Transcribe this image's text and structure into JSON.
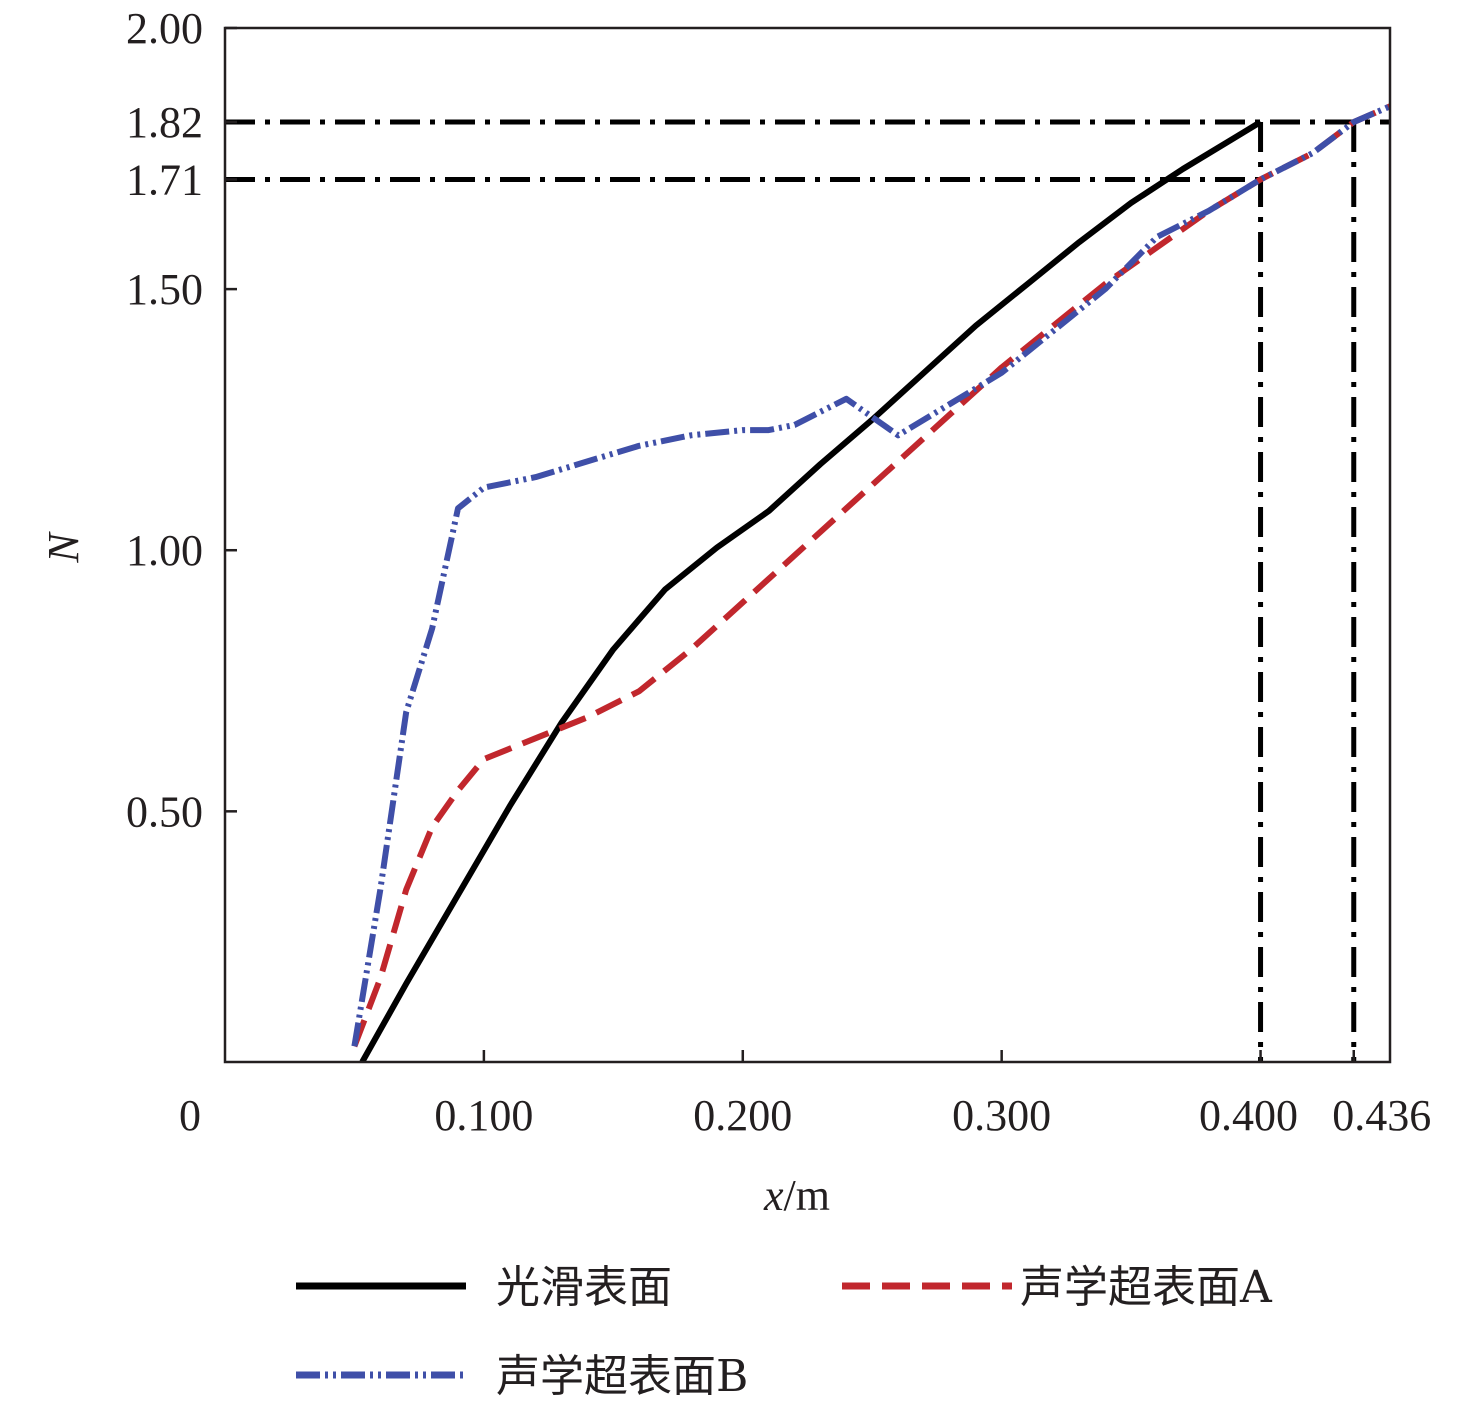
{
  "chart_data": {
    "type": "line",
    "xlabel_italic": "x",
    "xlabel_unit": "/m",
    "ylabel": "N",
    "xlim": [
      0,
      0.45
    ],
    "ylim": [
      0.02,
      2.0
    ],
    "x_ticks": [
      {
        "value": 0,
        "label": "0"
      },
      {
        "value": 0.1,
        "label": "0.100"
      },
      {
        "value": 0.2,
        "label": "0.200"
      },
      {
        "value": 0.3,
        "label": "0.300"
      },
      {
        "value": 0.4,
        "label": "0.400"
      },
      {
        "value": 0.436,
        "label": "0.436"
      }
    ],
    "y_ticks": [
      {
        "value": 0.5,
        "label": "0.50"
      },
      {
        "value": 1.0,
        "label": "1.00"
      },
      {
        "value": 1.5,
        "label": "1.50"
      },
      {
        "value": 1.71,
        "label": "1.71"
      },
      {
        "value": 1.82,
        "label": "1.82"
      },
      {
        "value": 2.0,
        "label": "2.00"
      }
    ],
    "series": [
      {
        "name": "光滑表面",
        "color": "#000000",
        "style": "solid",
        "x": [
          0.053,
          0.07,
          0.09,
          0.11,
          0.13,
          0.15,
          0.17,
          0.19,
          0.21,
          0.23,
          0.25,
          0.27,
          0.29,
          0.31,
          0.33,
          0.35,
          0.37,
          0.39,
          0.4
        ],
        "y": [
          0.02,
          0.17,
          0.34,
          0.51,
          0.67,
          0.81,
          0.925,
          1.005,
          1.075,
          1.165,
          1.25,
          1.34,
          1.43,
          1.51,
          1.59,
          1.665,
          1.73,
          1.79,
          1.82
        ]
      },
      {
        "name": "声学超表面A",
        "color": "#c1272d",
        "style": "dashed",
        "x": [
          0.05,
          0.06,
          0.07,
          0.08,
          0.09,
          0.1,
          0.12,
          0.14,
          0.16,
          0.18,
          0.2,
          0.22,
          0.24,
          0.26,
          0.28,
          0.3,
          0.32,
          0.34,
          0.36,
          0.38,
          0.4,
          0.42,
          0.436,
          0.45
        ],
        "y": [
          0.05,
          0.18,
          0.35,
          0.47,
          0.54,
          0.6,
          0.64,
          0.68,
          0.73,
          0.81,
          0.9,
          0.99,
          1.08,
          1.17,
          1.26,
          1.35,
          1.43,
          1.51,
          1.58,
          1.65,
          1.71,
          1.76,
          1.82,
          1.85
        ]
      },
      {
        "name": "声学超表面B",
        "color": "#3f4fa8",
        "style": "dash-dot-dot",
        "x": [
          0.05,
          0.06,
          0.07,
          0.08,
          0.09,
          0.1,
          0.12,
          0.14,
          0.16,
          0.18,
          0.2,
          0.21,
          0.22,
          0.24,
          0.26,
          0.28,
          0.3,
          0.32,
          0.34,
          0.35,
          0.36,
          0.38,
          0.4,
          0.42,
          0.436,
          0.45
        ],
        "y": [
          0.05,
          0.35,
          0.69,
          0.85,
          1.08,
          1.12,
          1.14,
          1.17,
          1.2,
          1.22,
          1.23,
          1.23,
          1.24,
          1.29,
          1.22,
          1.28,
          1.34,
          1.42,
          1.5,
          1.55,
          1.6,
          1.65,
          1.71,
          1.76,
          1.82,
          1.85
        ]
      }
    ],
    "reference_lines": {
      "horizontal": [
        1.82,
        1.71
      ],
      "vertical": [
        0.4,
        0.436
      ],
      "color": "#000000",
      "style": "dash-dot"
    },
    "legend": {
      "placement": "bottom",
      "entries": [
        "光滑表面",
        "声学超表面A",
        "声学超表面B"
      ]
    },
    "grid": false
  }
}
